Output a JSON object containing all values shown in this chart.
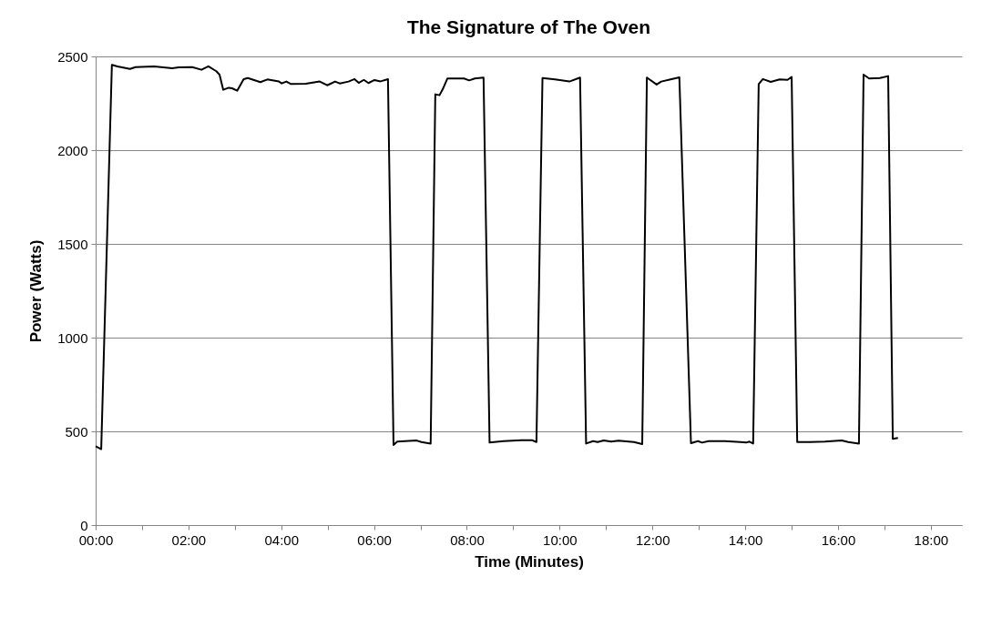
{
  "chart_data": {
    "type": "line",
    "title": "The Signature of The Oven",
    "xlabel": "Time (Minutes)",
    "ylabel": "Power (Watts)",
    "x": [
      0,
      0.12,
      0.35,
      0.47,
      0.74,
      0.86,
      1.26,
      1.65,
      1.79,
      2.08,
      2.28,
      2.43,
      2.6,
      2.67,
      2.75,
      2.87,
      2.94,
      3.05,
      3.19,
      3.28,
      3.55,
      3.7,
      3.95,
      4.01,
      4.11,
      4.21,
      4.53,
      4.83,
      4.99,
      5.16,
      5.26,
      5.45,
      5.58,
      5.67,
      5.78,
      5.88,
      6.01,
      6.14,
      6.3,
      6.42,
      6.5,
      6.92,
      7.02,
      7.22,
      7.32,
      7.41,
      7.48,
      7.58,
      7.94,
      8.05,
      8.17,
      8.36,
      8.49,
      8.79,
      9.18,
      9.4,
      9.5,
      9.63,
      9.9,
      10.21,
      10.44,
      10.57,
      10.72,
      10.82,
      10.95,
      11.11,
      11.27,
      11.6,
      11.78,
      11.88,
      12.09,
      12.19,
      12.39,
      12.58,
      12.83,
      12.98,
      13.07,
      13.21,
      13.56,
      13.89,
      14.02,
      14.09,
      14.17,
      14.29,
      14.38,
      14.55,
      14.74,
      14.91,
      15.0,
      15.12,
      15.4,
      15.72,
      16.08,
      16.22,
      16.45,
      16.55,
      16.67,
      16.9,
      17.08,
      17.18,
      17.29
    ],
    "series": [
      {
        "color": "#000000",
        "values": [
          420,
          405,
          2455,
          2447,
          2433,
          2443,
          2447,
          2437,
          2442,
          2443,
          2429,
          2447,
          2421,
          2403,
          2322,
          2333,
          2330,
          2317,
          2379,
          2385,
          2363,
          2377,
          2366,
          2356,
          2366,
          2353,
          2354,
          2366,
          2346,
          2366,
          2356,
          2366,
          2379,
          2359,
          2375,
          2358,
          2374,
          2367,
          2379,
          427,
          445,
          451,
          443,
          435,
          2298,
          2293,
          2325,
          2382,
          2382,
          2372,
          2382,
          2387,
          440,
          448,
          453,
          453,
          443,
          2385,
          2377,
          2366,
          2387,
          435,
          448,
          443,
          451,
          445,
          450,
          443,
          432,
          2387,
          2350,
          2366,
          2377,
          2388,
          437,
          448,
          440,
          448,
          448,
          443,
          440,
          445,
          435,
          2353,
          2379,
          2364,
          2377,
          2375,
          2390,
          443,
          443,
          445,
          451,
          443,
          435,
          2403,
          2382,
          2385,
          2395,
          460,
          465
        ]
      }
    ],
    "xlim": [
      0,
      18.67
    ],
    "ylim": [
      0,
      2500
    ],
    "xticks": [
      {
        "value": 0,
        "label": "00:00"
      },
      {
        "value": 1,
        "label": null
      },
      {
        "value": 2,
        "label": "02:00"
      },
      {
        "value": 3,
        "label": null
      },
      {
        "value": 4,
        "label": "04:00"
      },
      {
        "value": 5,
        "label": null
      },
      {
        "value": 6,
        "label": "06:00"
      },
      {
        "value": 7,
        "label": null
      },
      {
        "value": 8,
        "label": "08:00"
      },
      {
        "value": 9,
        "label": null
      },
      {
        "value": 10,
        "label": "10:00"
      },
      {
        "value": 11,
        "label": null
      },
      {
        "value": 12,
        "label": "12:00"
      },
      {
        "value": 13,
        "label": null
      },
      {
        "value": 14,
        "label": "14:00"
      },
      {
        "value": 15,
        "label": null
      },
      {
        "value": 16,
        "label": "16:00"
      },
      {
        "value": 17,
        "label": null
      },
      {
        "value": 18,
        "label": "18:00"
      }
    ],
    "yticks": [
      0,
      500,
      1000,
      1500,
      2000,
      2500
    ],
    "grid": "y",
    "legend": false,
    "marker": "none",
    "line_style": "solid"
  }
}
